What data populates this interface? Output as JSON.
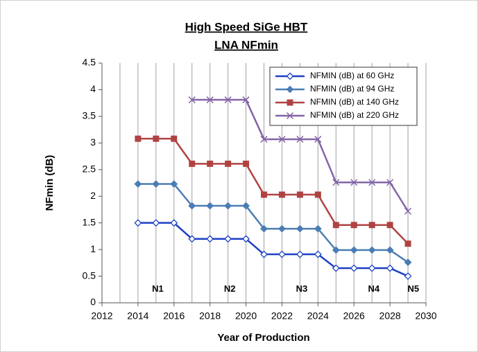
{
  "chart_data": {
    "type": "line",
    "title": [
      "High Speed SiGe HBT",
      "LNA NFmin"
    ],
    "xlabel": "Year of Production",
    "ylabel": "NFmin (dB)",
    "x": [
      2014,
      2015,
      2016,
      2017,
      2018,
      2019,
      2020,
      2021,
      2022,
      2023,
      2024,
      2025,
      2026,
      2027,
      2028,
      2029
    ],
    "series": [
      {
        "name": "NFMIN (dB) at 60 GHz",
        "color": "#1c3fc4",
        "marker": "diamond-open",
        "values": [
          1.5,
          1.5,
          1.5,
          1.2,
          1.2,
          1.2,
          1.2,
          0.91,
          0.91,
          0.91,
          0.91,
          0.65,
          0.65,
          0.65,
          0.65,
          0.5
        ]
      },
      {
        "name": "NFMIN (dB) at 94 GHz",
        "color": "#4a7db4",
        "marker": "diamond",
        "values": [
          2.23,
          2.23,
          2.23,
          1.82,
          1.82,
          1.82,
          1.82,
          1.39,
          1.39,
          1.39,
          1.39,
          0.99,
          0.99,
          0.99,
          0.99,
          0.76
        ]
      },
      {
        "name": "NFMIN (dB) at 140 GHz",
        "color": "#b04242",
        "marker": "square",
        "values": [
          3.08,
          3.08,
          3.08,
          2.61,
          2.61,
          2.61,
          2.61,
          2.03,
          2.03,
          2.03,
          2.03,
          1.46,
          1.46,
          1.46,
          1.46,
          1.11
        ]
      },
      {
        "name": "NFMIN (dB) at 220 GHz",
        "color": "#8464a8",
        "marker": "x",
        "values": [
          null,
          null,
          null,
          3.81,
          3.81,
          3.81,
          3.81,
          3.07,
          3.07,
          3.07,
          3.07,
          2.26,
          2.26,
          2.26,
          2.26,
          1.72
        ]
      }
    ],
    "annotations": [
      "N1",
      "N2",
      "N3",
      "N4",
      "N5"
    ],
    "xlim": [
      2012,
      2030
    ],
    "xticks": [
      2012,
      2014,
      2016,
      2018,
      2020,
      2022,
      2024,
      2026,
      2028,
      2030
    ],
    "ylim": [
      0,
      4.5
    ],
    "yticks": [
      0,
      0.5,
      1,
      1.5,
      2,
      2.5,
      3,
      3.5,
      4,
      4.5
    ],
    "grid": "x",
    "legend": "upper right"
  }
}
